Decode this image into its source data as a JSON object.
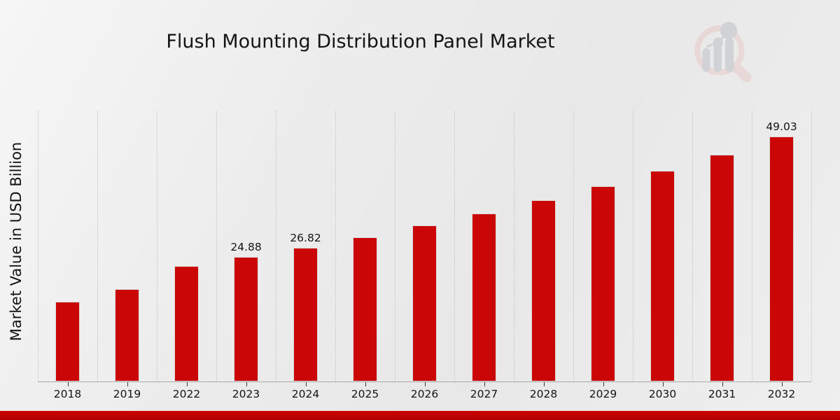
{
  "page": {
    "title": "Flush Mounting Distribution Panel Market",
    "ylabel": "Market Value in USD Billion"
  },
  "chart_data": {
    "type": "bar",
    "title": "Flush Mounting Distribution Panel Market",
    "xlabel": "",
    "ylabel": "Market Value in USD Billion",
    "categories": [
      "2018",
      "2019",
      "2022",
      "2023",
      "2024",
      "2025",
      "2026",
      "2027",
      "2028",
      "2029",
      "2030",
      "2031",
      "2032"
    ],
    "values": [
      16.0,
      18.55,
      23.05,
      24.88,
      26.82,
      28.92,
      31.18,
      33.62,
      36.25,
      39.09,
      42.15,
      45.45,
      49.03
    ],
    "value_labels": [
      "",
      "",
      "",
      "24.88",
      "26.82",
      "",
      "",
      "",
      "",
      "",
      "",
      "",
      "49.03"
    ],
    "ylim": [
      0,
      54
    ],
    "grid": "vertical-dotted-separators",
    "legend": "none",
    "bar_color": "#cb0606"
  },
  "colors": {
    "bar": "#cb0606",
    "footer_strip": "#bf0303",
    "grid_line": "#c2c2c2",
    "axis_line": "#a9a9a9",
    "text": "#141414",
    "background": "#ededed"
  },
  "watermark": {
    "name": "magnifier-bar-chart-logo"
  },
  "footer": {
    "strip": ""
  }
}
